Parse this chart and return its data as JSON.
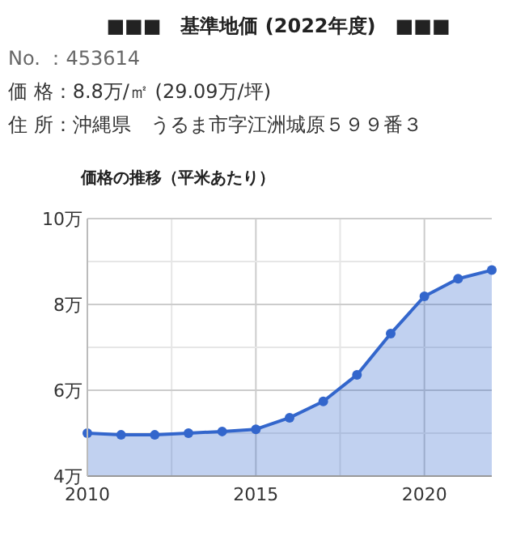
{
  "chart_data": {
    "type": "area",
    "title": "■■■　基準地価 (2022年度)　■■■",
    "subtitle": "価格の推移（平米あたり）",
    "annotations": [
      "No. ：453614",
      "価 格：8.8万/㎡ (29.09万/坪)",
      "住 所：沖縄県　うるま市字江洲城原５９９番３"
    ],
    "x": [
      2010,
      2011,
      2012,
      2013,
      2014,
      2015,
      2016,
      2017,
      2018,
      2019,
      2020,
      2021,
      2022
    ],
    "series": [
      {
        "color": "#3366cc",
        "values": [
          5.0,
          4.96,
          4.96,
          5.0,
          5.04,
          5.09,
          5.36,
          5.74,
          6.36,
          7.32,
          8.19,
          8.6,
          8.8
        ]
      }
    ],
    "xlim": [
      2010,
      2022
    ],
    "xticks": [
      2010,
      {
        "value": 2012.5,
        "label": null
      },
      2015,
      {
        "value": 2017.5,
        "label": null
      },
      2020
    ],
    "ylim": [
      4,
      10
    ],
    "yticks": [
      {
        "value": 4,
        "label": "4万"
      },
      {
        "value": 5,
        "label": null
      },
      {
        "value": 6,
        "label": "6万"
      },
      {
        "value": 7,
        "label": null
      },
      {
        "value": 8,
        "label": "8万"
      },
      {
        "value": 9,
        "label": null
      },
      {
        "value": 10,
        "label": "10万"
      }
    ],
    "grid": true,
    "marker": "circle",
    "line_style": "solid"
  }
}
